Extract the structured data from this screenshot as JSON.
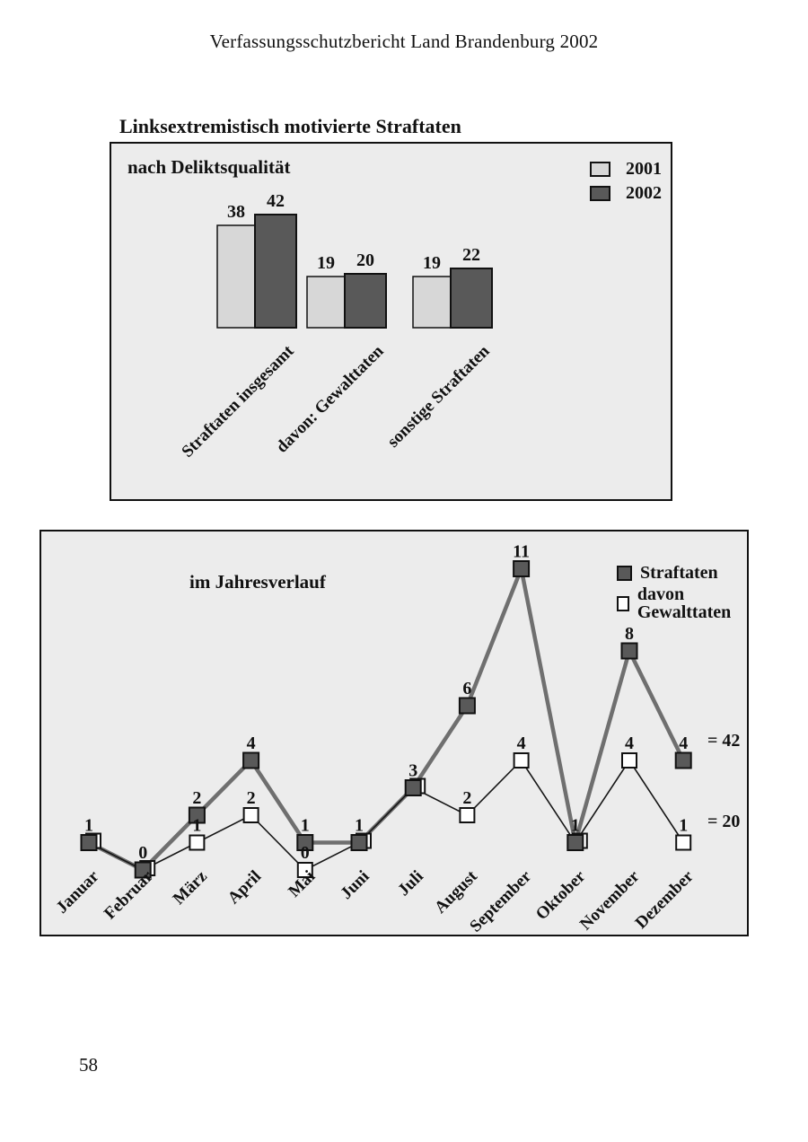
{
  "page": {
    "header": "Verfassungsschutzbericht Land Brandenburg 2002",
    "title": "Linksextremistisch motivierte Straftaten",
    "page_number": "58"
  },
  "colors": {
    "box_bg": "#ececec",
    "bar_2001": "#d7d7d7",
    "bar_2002": "#595959",
    "marker_dark": "#595959",
    "marker_light": "#ffffff",
    "line_straftaten": "#6f6f6f",
    "line_gewalttaten": "#161616",
    "border": "#111111"
  },
  "chart_data": [
    {
      "type": "bar",
      "title": "nach Deliktsqualität",
      "categories": [
        "Straftaten insgesamt",
        "davon: Gewalttaten",
        "sonstige Straftaten"
      ],
      "series": [
        {
          "name": "2001",
          "values": [
            38,
            19,
            19
          ]
        },
        {
          "name": "2002",
          "values": [
            42,
            20,
            22
          ]
        }
      ],
      "legend_position": "top-right",
      "value_labels": true,
      "grid": false,
      "ylim": [
        0,
        46
      ]
    },
    {
      "type": "line",
      "title": "im Jahresverlauf",
      "categories": [
        "Januar",
        "Februar",
        "März",
        "April",
        "Mai",
        "Juni",
        "Juli",
        "August",
        "September",
        "Oktober",
        "November",
        "Dezember"
      ],
      "series": [
        {
          "name": "Straftaten",
          "values": [
            1,
            0,
            2,
            4,
            1,
            1,
            3,
            6,
            11,
            1,
            8,
            4
          ],
          "total_label": "= 42"
        },
        {
          "name": "davon Gewalttaten",
          "values": [
            1,
            0,
            1,
            2,
            0,
            1,
            3,
            2,
            4,
            1,
            4,
            1
          ],
          "total_label": "= 20"
        }
      ],
      "legend_position": "top-right",
      "value_labels": true,
      "grid": false,
      "ylim": [
        0,
        12
      ]
    }
  ]
}
